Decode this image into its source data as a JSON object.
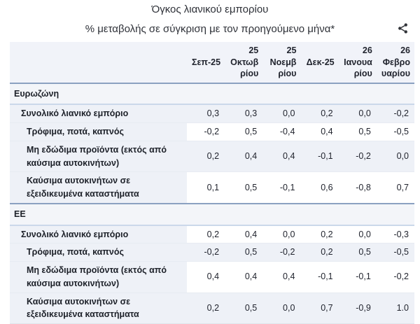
{
  "header": {
    "title": "Όγκος λιανικού εμπορίου",
    "subtitle": "% μεταβολής σε σύγκριση με τον προηγούμενο μήνα*"
  },
  "toolbar": {
    "share_icon": "share-icon"
  },
  "colors": {
    "divider_strong": "#8ba1c1",
    "divider_light": "#cbd8ea",
    "row_tint": "#eef1f7",
    "section_bg": "#f3f5f9",
    "header_band_bg": "#f1f3f9",
    "text": "#21242e",
    "icon": "#2f3237"
  },
  "table": {
    "columns": [
      "Σεπ-25",
      "25 Οκτωβρίου",
      "25 Νοεμβρίου",
      "Δεκ-25",
      "26 Ιανουαρίου",
      "26 Φεβρουαρίου"
    ],
    "sections": [
      {
        "name": "Ευρωζώνη",
        "rows": [
          {
            "label": "Συνολικό λιανικό εμπόριο",
            "indent": 1,
            "values": [
              "0,3",
              "0,3",
              "0,0",
              "0,2",
              "0,0",
              "-0,2"
            ]
          },
          {
            "label": "Τρόφιμα, ποτά, καπνός",
            "indent": 2,
            "values": [
              "-0,2",
              "0,5",
              "-0,4",
              "0,4",
              "0,5",
              "-0,5"
            ]
          },
          {
            "label": "Μη εδώδιμα προϊόντα (εκτός από καύσιμα αυτοκινήτων)",
            "indent": 2,
            "values": [
              "0,2",
              "0,4",
              "0,4",
              "-0,1",
              "-0,2",
              "0,0"
            ]
          },
          {
            "label": "Καύσιμα αυτοκινήτων σε εξειδικευμένα καταστήματα",
            "indent": 2,
            "values": [
              "0,1",
              "0,5",
              "-0,1",
              "0,6",
              "-0,8",
              "0,7"
            ]
          }
        ]
      },
      {
        "name": "ΕΕ",
        "rows": [
          {
            "label": "Συνολικό λιανικό εμπόριο",
            "indent": 1,
            "values": [
              "0,2",
              "0,4",
              "0,0",
              "0,2",
              "0,0",
              "-0,3"
            ]
          },
          {
            "label": "Τρόφιμα, ποτά, καπνός",
            "indent": 2,
            "values": [
              "-0,2",
              "0,5",
              "-0,2",
              "0,2",
              "0,5",
              "-0,5"
            ]
          },
          {
            "label": "Μη εδώδιμα προϊόντα (εκτός από καύσιμα αυτοκινήτων)",
            "indent": 2,
            "values": [
              "0,4",
              "0,4",
              "0,4",
              "-0,1",
              "-0,1",
              "-0,2"
            ]
          },
          {
            "label": "Καύσιμα αυτοκινήτων σε εξειδικευμένα καταστήματα",
            "indent": 2,
            "values": [
              "0,2",
              "0,5",
              "0,0",
              "0,7",
              "-0,9",
              "1.0"
            ]
          }
        ]
      }
    ]
  },
  "chart_data": {
    "type": "table",
    "title": "Όγκος λιανικού εμπορίου",
    "subtitle": "% μεταβολής σε σύγκριση με τον προηγούμενο μήνα*",
    "columns": [
      "Σεπ-25",
      "25 Οκτωβρίου",
      "25 Νοεμβρίου",
      "Δεκ-25",
      "26 Ιανουαρίου",
      "26 Φεβρουαρίου"
    ],
    "groups": [
      {
        "name": "Ευρωζώνη",
        "series": [
          {
            "name": "Συνολικό λιανικό εμπόριο",
            "values": [
              0.3,
              0.3,
              0.0,
              0.2,
              0.0,
              -0.2
            ]
          },
          {
            "name": "Τρόφιμα, ποτά, καπνός",
            "values": [
              -0.2,
              0.5,
              -0.4,
              0.4,
              0.5,
              -0.5
            ]
          },
          {
            "name": "Μη εδώδιμα προϊόντα (εκτός από καύσιμα αυτοκινήτων)",
            "values": [
              0.2,
              0.4,
              0.4,
              -0.1,
              -0.2,
              0.0
            ]
          },
          {
            "name": "Καύσιμα αυτοκινήτων σε εξειδικευμένα καταστήματα",
            "values": [
              0.1,
              0.5,
              -0.1,
              0.6,
              -0.8,
              0.7
            ]
          }
        ]
      },
      {
        "name": "ΕΕ",
        "series": [
          {
            "name": "Συνολικό λιανικό εμπόριο",
            "values": [
              0.2,
              0.4,
              0.0,
              0.2,
              0.0,
              -0.3
            ]
          },
          {
            "name": "Τρόφιμα, ποτά, καπνός",
            "values": [
              -0.2,
              0.5,
              -0.2,
              0.2,
              0.5,
              -0.5
            ]
          },
          {
            "name": "Μη εδώδιμα προϊόντα (εκτός από καύσιμα αυτοκινήτων)",
            "values": [
              0.4,
              0.4,
              0.4,
              -0.1,
              -0.1,
              -0.2
            ]
          },
          {
            "name": "Καύσιμα αυτοκινήτων σε εξειδικευμένα καταστήματα",
            "values": [
              0.2,
              0.5,
              0.0,
              0.7,
              -0.9,
              1.0
            ]
          }
        ]
      }
    ]
  }
}
